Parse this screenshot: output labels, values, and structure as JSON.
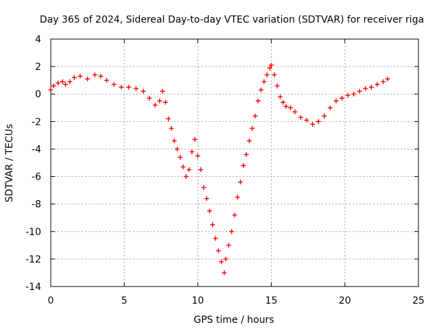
{
  "chart_data": {
    "type": "scatter",
    "title": "Day 365 of 2024, Sidereal Day-to-day VTEC variation (SDTVAR) for receiver riga",
    "xlabel": "GPS time / hours",
    "ylabel": "SDTVAR / TECUs",
    "xlim": [
      0,
      25
    ],
    "ylim": [
      -14,
      4
    ],
    "xticks": [
      0,
      5,
      10,
      15,
      20,
      25
    ],
    "yticks": [
      -14,
      -12,
      -10,
      -8,
      -6,
      -4,
      -2,
      0,
      2,
      4
    ],
    "xtick_labels": [
      "0",
      "5",
      "10",
      "15",
      "20",
      "25"
    ],
    "ytick_labels": [
      "-14",
      "-12",
      "-10",
      "-8",
      "-6",
      "-4",
      "-2",
      "0",
      "2",
      "4"
    ],
    "grid": true,
    "marker": "+",
    "color": "#ff0000",
    "series": [
      {
        "name": "riga",
        "points": [
          [
            0.0,
            0.3
          ],
          [
            0.2,
            0.6
          ],
          [
            0.5,
            0.8
          ],
          [
            0.8,
            0.9
          ],
          [
            1.0,
            0.7
          ],
          [
            1.3,
            0.9
          ],
          [
            1.6,
            1.2
          ],
          [
            2.0,
            1.3
          ],
          [
            2.5,
            1.1
          ],
          [
            3.0,
            1.4
          ],
          [
            3.4,
            1.3
          ],
          [
            3.8,
            1.0
          ],
          [
            4.3,
            0.7
          ],
          [
            4.8,
            0.5
          ],
          [
            5.3,
            0.5
          ],
          [
            5.8,
            0.4
          ],
          [
            6.3,
            0.2
          ],
          [
            6.7,
            -0.3
          ],
          [
            7.1,
            -0.8
          ],
          [
            7.4,
            -0.5
          ],
          [
            7.6,
            0.2
          ],
          [
            7.8,
            -0.6
          ],
          [
            8.0,
            -1.8
          ],
          [
            8.2,
            -2.5
          ],
          [
            8.4,
            -3.4
          ],
          [
            8.6,
            -4.0
          ],
          [
            8.8,
            -4.6
          ],
          [
            9.0,
            -5.3
          ],
          [
            9.2,
            -6.0
          ],
          [
            9.4,
            -5.5
          ],
          [
            9.6,
            -4.2
          ],
          [
            9.8,
            -3.3
          ],
          [
            10.0,
            -4.5
          ],
          [
            10.2,
            -5.5
          ],
          [
            10.4,
            -6.8
          ],
          [
            10.6,
            -7.6
          ],
          [
            10.8,
            -8.5
          ],
          [
            11.0,
            -9.5
          ],
          [
            11.2,
            -10.5
          ],
          [
            11.4,
            -11.4
          ],
          [
            11.6,
            -12.2
          ],
          [
            11.8,
            -13.0
          ],
          [
            11.9,
            -12.0
          ],
          [
            12.1,
            -11.0
          ],
          [
            12.3,
            -10.0
          ],
          [
            12.5,
            -8.8
          ],
          [
            12.7,
            -7.5
          ],
          [
            12.9,
            -6.4
          ],
          [
            13.1,
            -5.2
          ],
          [
            13.3,
            -4.4
          ],
          [
            13.5,
            -3.4
          ],
          [
            13.7,
            -2.5
          ],
          [
            13.9,
            -1.6
          ],
          [
            14.1,
            -0.5
          ],
          [
            14.3,
            0.3
          ],
          [
            14.5,
            0.9
          ],
          [
            14.7,
            1.4
          ],
          [
            14.9,
            1.9
          ],
          [
            15.0,
            2.1
          ],
          [
            15.2,
            1.4
          ],
          [
            15.4,
            0.6
          ],
          [
            15.6,
            -0.2
          ],
          [
            15.8,
            -0.6
          ],
          [
            16.0,
            -0.9
          ],
          [
            16.3,
            -1.0
          ],
          [
            16.6,
            -1.3
          ],
          [
            17.0,
            -1.7
          ],
          [
            17.4,
            -1.9
          ],
          [
            17.8,
            -2.2
          ],
          [
            18.2,
            -2.0
          ],
          [
            18.6,
            -1.6
          ],
          [
            19.0,
            -1.0
          ],
          [
            19.4,
            -0.5
          ],
          [
            19.8,
            -0.3
          ],
          [
            20.2,
            -0.1
          ],
          [
            20.6,
            0.0
          ],
          [
            21.0,
            0.2
          ],
          [
            21.4,
            0.4
          ],
          [
            21.8,
            0.5
          ],
          [
            22.2,
            0.7
          ],
          [
            22.6,
            0.9
          ],
          [
            22.9,
            1.1
          ]
        ]
      }
    ]
  }
}
